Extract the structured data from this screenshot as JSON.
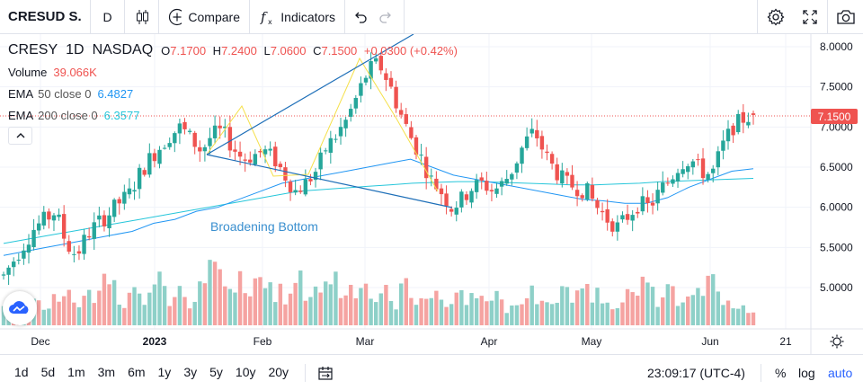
{
  "toolbar": {
    "symbol": "CRESUD S.A",
    "interval": "D",
    "compare_label": "Compare",
    "indicators_label": "Indicators"
  },
  "legend": {
    "ticker": "CRESY",
    "interval": "1D",
    "exchange": "NASDAQ",
    "o_label": "O",
    "o_value": "7.1700",
    "h_label": "H",
    "h_value": "7.2400",
    "l_label": "L",
    "l_value": "7.0600",
    "c_label": "C",
    "c_value": "7.1500",
    "change": "+0.0300 (+0.42%)",
    "volume_label": "Volume",
    "volume_value": "39.066K",
    "ema50_label": "EMA",
    "ema50_params": "50 close 0",
    "ema50_value": "6.4827",
    "ema200_label": "EMA",
    "ema200_params": "200 close 0",
    "ema200_value": "6.3577"
  },
  "price_axis": {
    "ticks": [
      "8.0000",
      "7.5000",
      "7.0000",
      "6.5000",
      "6.0000",
      "5.5000",
      "5.0000"
    ],
    "last_price": "7.1500"
  },
  "time_axis": {
    "ticks": [
      "Dec",
      "2023",
      "Feb",
      "Mar",
      "Apr",
      "May",
      "Jun",
      "21"
    ]
  },
  "annotation": "Broadening Bottom",
  "bottom": {
    "ranges": [
      "1d",
      "5d",
      "1m",
      "3m",
      "6m",
      "1y",
      "3y",
      "5y",
      "10y",
      "20y"
    ],
    "clock": "23:09:17 (UTC-4)",
    "percent_label": "%",
    "log_label": "log",
    "auto_label": "auto"
  },
  "colors": {
    "up": "#26a69a",
    "down": "#ef5350",
    "ema50": "#2196f3",
    "ema200": "#26c6da",
    "pattern": "#f5e04a",
    "trendline": "#1e6fb8",
    "accent": "#2962ff"
  },
  "chart_data": {
    "type": "candlestick",
    "y_range": [
      4.6,
      8.1
    ],
    "x_labels": [
      "Dec",
      "2023",
      "Feb",
      "Mar",
      "Apr",
      "May",
      "Jun",
      "21"
    ],
    "last": {
      "open": 7.17,
      "high": 7.24,
      "low": 7.06,
      "close": 7.15
    },
    "close_path": [
      5.15,
      5.35,
      5.55,
      5.75,
      5.85,
      5.95,
      5.55,
      5.4,
      5.65,
      5.8,
      5.9,
      6.05,
      6.15,
      6.4,
      6.6,
      6.75,
      6.9,
      7.0,
      6.85,
      6.7,
      6.9,
      6.95,
      6.75,
      6.6,
      6.65,
      6.7,
      6.6,
      6.4,
      6.2,
      6.3,
      6.45,
      6.75,
      6.9,
      7.1,
      7.4,
      7.7,
      7.8,
      7.55,
      7.2,
      6.9,
      6.65,
      6.35,
      6.2,
      6.0,
      6.1,
      6.25,
      6.3,
      6.2,
      6.3,
      6.5,
      6.8,
      6.95,
      6.65,
      6.45,
      6.3,
      6.25,
      6.2,
      6.0,
      5.85,
      5.75,
      5.9,
      6.05,
      6.0,
      6.2,
      6.35,
      6.55,
      6.6,
      6.45,
      6.4,
      6.75,
      7.0,
      7.1,
      7.15
    ],
    "ema50": [
      5.4,
      5.45,
      5.5,
      5.55,
      5.6,
      5.65,
      5.7,
      5.8,
      5.85,
      5.95,
      6.0,
      6.1,
      6.2,
      6.3,
      6.35,
      6.4,
      6.45,
      6.5,
      6.55,
      6.6,
      6.5,
      6.4,
      6.35,
      6.3,
      6.25,
      6.2,
      6.15,
      6.1,
      6.08,
      6.05,
      6.05,
      6.12,
      6.25,
      6.35,
      6.45,
      6.48
    ],
    "ema200": [
      5.55,
      5.6,
      5.65,
      5.7,
      5.75,
      5.8,
      5.85,
      5.9,
      5.95,
      6.0,
      6.05,
      6.1,
      6.15,
      6.2,
      6.22,
      6.24,
      6.26,
      6.28,
      6.3,
      6.31,
      6.32,
      6.32,
      6.31,
      6.3,
      6.29,
      6.28,
      6.28,
      6.29,
      6.3,
      6.32,
      6.33,
      6.34,
      6.35,
      6.36
    ],
    "volume_relative": [
      0.3,
      0.5,
      0.4,
      0.6,
      0.3,
      0.5,
      0.7,
      0.4,
      0.6,
      0.5,
      0.8,
      0.4,
      0.6,
      0.5,
      0.7,
      0.9,
      0.5,
      0.6,
      0.4,
      0.7,
      1.0,
      0.6,
      0.8,
      0.5,
      0.9,
      0.7,
      0.6,
      0.5,
      0.8,
      0.6,
      0.7,
      0.9,
      0.6,
      0.7,
      0.8,
      0.5,
      0.6,
      0.4,
      0.7,
      0.5,
      0.6,
      0.5,
      0.4,
      0.6,
      0.5,
      0.7,
      0.4,
      0.5,
      0.3,
      0.4,
      0.6,
      0.5,
      0.4,
      0.6,
      0.5,
      0.7,
      0.6,
      0.5,
      0.4,
      0.6,
      0.5,
      0.7,
      0.4,
      0.6,
      0.5,
      0.7,
      0.6,
      0.8,
      0.5,
      0.4,
      0.3,
      0.25
    ]
  }
}
